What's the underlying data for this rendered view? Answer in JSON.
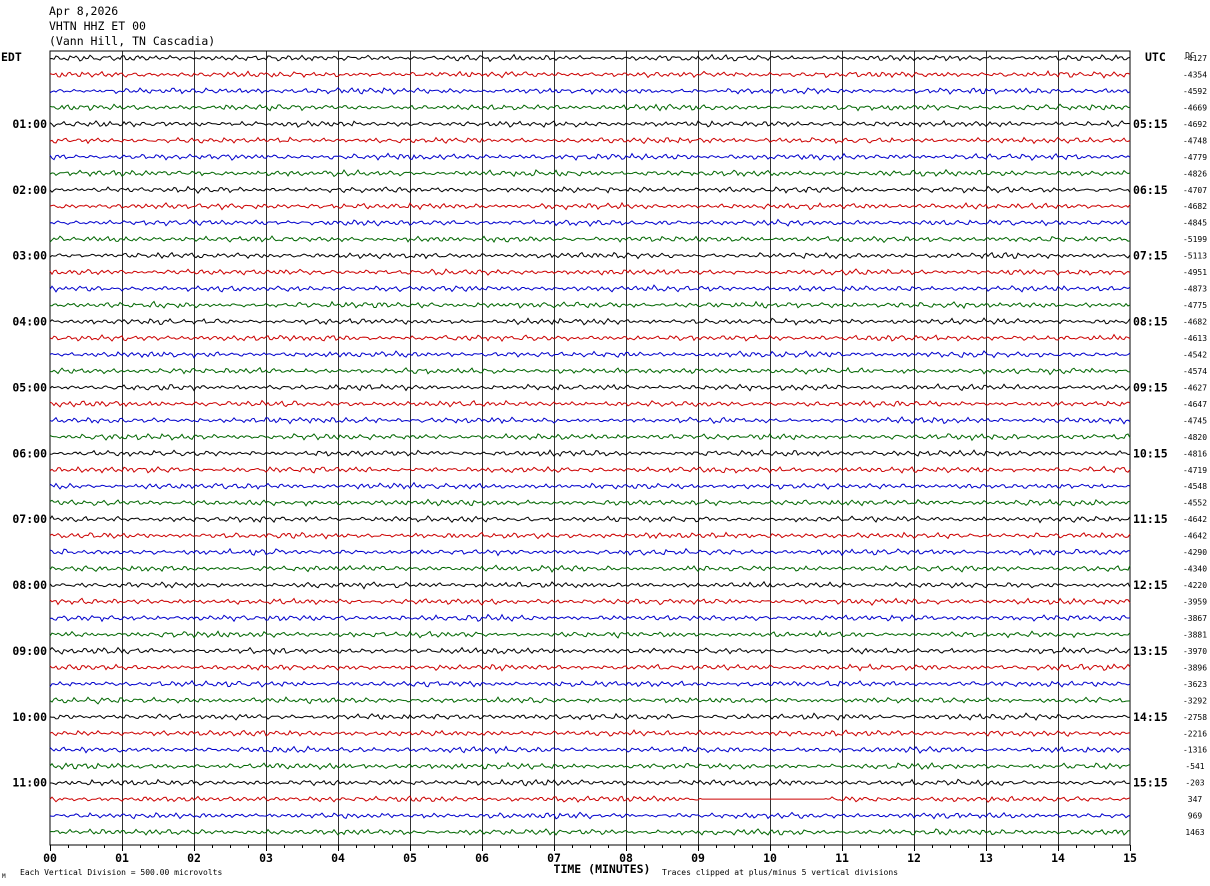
{
  "header": {
    "date": "Apr 8,2026",
    "station": "VHTN HHZ ET 00",
    "location": "(Vann Hill, TN Cascadia)"
  },
  "left_label": "EDT",
  "right_label": "UTC",
  "dc_label": "DC",
  "footer": {
    "scale_note": "Each Vertical Division =  500.00 microvolts",
    "xaxis_title": "TIME (MINUTES)",
    "clip_note": "Traces clipped at plus/minus 5 vertical divisions",
    "corner_mark": "M"
  },
  "colors": {
    "trace_cycle": [
      "#000000",
      "#cc0000",
      "#0000cc",
      "#006600"
    ],
    "grid": "#000000",
    "background": "#ffffff"
  },
  "chart_data": {
    "type": "line",
    "xlabel": "TIME (MINUTES)",
    "xlim": [
      0,
      15
    ],
    "x_ticks": [
      "00",
      "01",
      "02",
      "03",
      "04",
      "05",
      "06",
      "07",
      "08",
      "09",
      "10",
      "11",
      "12",
      "13",
      "14",
      "15"
    ],
    "left_hour_labels": [
      "01:00",
      "02:00",
      "03:00",
      "04:00",
      "05:00",
      "06:00",
      "07:00",
      "08:00",
      "09:00",
      "10:00",
      "11:00"
    ],
    "right_hour_labels": [
      "05:15",
      "06:15",
      "07:15",
      "08:15",
      "09:15",
      "10:15",
      "11:15",
      "12:15",
      "13:15",
      "14:15",
      "15:15"
    ],
    "dc_offsets": [
      "-4127",
      "-4354",
      "-4592",
      "-4669",
      "-4692",
      "-4748",
      "-4779",
      "-4826",
      "-4707",
      "-4682",
      "-4845",
      "-5199",
      "-5113",
      "-4951",
      "-4873",
      "-4775",
      "-4682",
      "-4613",
      "-4542",
      "-4574",
      "-4627",
      "-4647",
      "-4745",
      "-4820",
      "-4816",
      "-4719",
      "-4548",
      "-4552",
      "-4642",
      "-4642",
      "-4290",
      "-4340",
      "-4220",
      "-3959",
      "-3867",
      "-3881",
      "-3970",
      "-3896",
      "-3623",
      "-3292",
      "-2758",
      "-2216",
      "-1316",
      "-541",
      "-203",
      "347",
      "969",
      "1463"
    ],
    "trace_count": 48,
    "minutes_per_trace": 15,
    "vertical_division_microvolts": 500,
    "clip_divisions": 5
  }
}
